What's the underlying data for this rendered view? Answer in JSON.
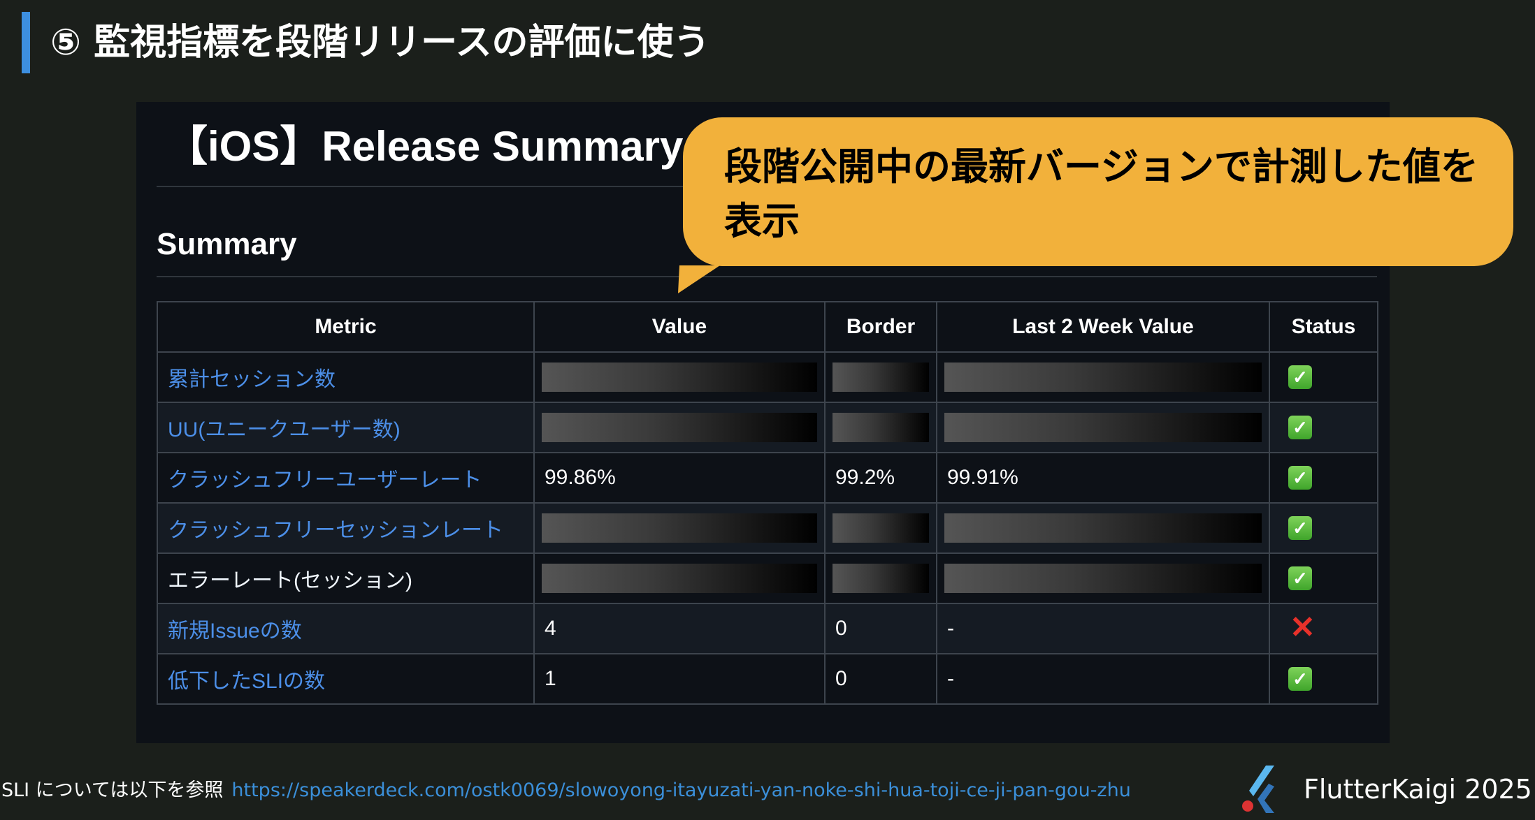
{
  "slide": {
    "title": "⑤ 監視指標を段階リリースの評価に使う",
    "accent_color": "#3d8fe0"
  },
  "report": {
    "title": "【iOS】Release Summary",
    "section": "Summary",
    "columns": [
      "Metric",
      "Value",
      "Border",
      "Last 2 Week Value",
      "Status"
    ],
    "rows": [
      {
        "metric": "累計セッション数",
        "link": true,
        "value": null,
        "border": null,
        "last2w": null,
        "status": "pass"
      },
      {
        "metric": "UU(ユニークユーザー数)",
        "link": true,
        "value": null,
        "border": null,
        "last2w": null,
        "status": "pass"
      },
      {
        "metric": "クラッシュフリーユーザーレート",
        "link": true,
        "value": "99.86%",
        "border": "99.2%",
        "last2w": "99.91%",
        "status": "pass"
      },
      {
        "metric": "クラッシュフリーセッションレート",
        "link": true,
        "value": null,
        "border": null,
        "last2w": null,
        "status": "pass"
      },
      {
        "metric": "エラーレート(セッション)",
        "link": false,
        "value": null,
        "border": null,
        "last2w": null,
        "status": "pass"
      },
      {
        "metric": "新規Issueの数",
        "link": true,
        "value": "4",
        "border": "0",
        "last2w": "-",
        "status": "fail"
      },
      {
        "metric": "低下したSLIの数",
        "link": true,
        "value": "1",
        "border": "0",
        "last2w": "-",
        "status": "pass"
      }
    ],
    "status_icons": {
      "pass": "check-mark-button-icon",
      "fail": "cross-mark-icon"
    }
  },
  "callout": {
    "text": "段階公開中の最新バージョンで計測した値を表示",
    "color": "#f2b13b"
  },
  "footer": {
    "note": "SLI については以下を参照",
    "link": "https://speakerdeck.com/ostk0069/slowoyong-itayuzati-yan-noke-shi-hua-toji-ce-ji-pan-gou-zhu",
    "brand": "FlutterKaigi 2025"
  }
}
